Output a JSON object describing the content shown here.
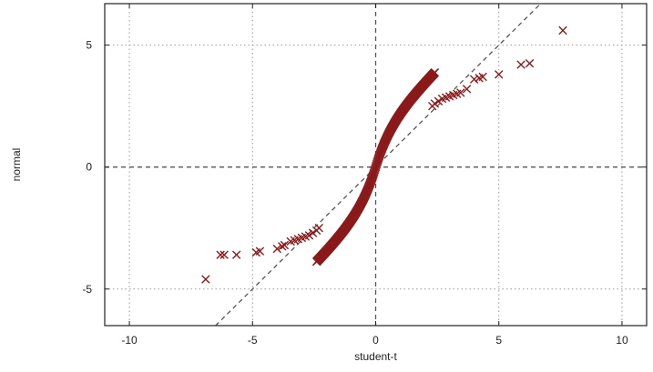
{
  "chart_data": {
    "type": "scatter",
    "xlabel": "student-t",
    "ylabel": "normal",
    "xlim": [
      -11,
      11
    ],
    "ylim": [
      -6.5,
      6.7
    ],
    "xticks": [
      -10,
      -5,
      0,
      5,
      10
    ],
    "yticks": [
      -5,
      0,
      5
    ],
    "grid": true,
    "marker": "x",
    "colors": {
      "points": "#8b1a1a",
      "grid": "#999999",
      "reference": "#555555",
      "frame": "#222222"
    },
    "reference_lines": [
      {
        "kind": "vertical",
        "x": 0
      },
      {
        "kind": "horizontal",
        "y": 0
      },
      {
        "kind": "diagonal",
        "points": [
          [
            -6.5,
            -6.5
          ],
          [
            6.7,
            6.7
          ]
        ]
      }
    ],
    "points": [
      [
        -6.9,
        -4.6
      ],
      [
        -6.3,
        -3.6
      ],
      [
        -6.15,
        -3.6
      ],
      [
        -5.65,
        -3.6
      ],
      [
        -4.85,
        -3.5
      ],
      [
        -4.7,
        -3.45
      ],
      [
        -4.0,
        -3.35
      ],
      [
        -3.8,
        -3.25
      ],
      [
        -3.7,
        -3.2
      ],
      [
        -3.45,
        -3.05
      ],
      [
        -3.3,
        -3.0
      ],
      [
        -3.15,
        -2.95
      ],
      [
        -3.0,
        -2.9
      ],
      [
        -2.85,
        -2.85
      ],
      [
        -2.7,
        -2.8
      ],
      [
        -2.55,
        -2.7
      ],
      [
        -2.4,
        -2.6
      ],
      [
        -2.3,
        -2.5
      ],
      [
        2.3,
        2.5
      ],
      [
        2.4,
        2.6
      ],
      [
        2.55,
        2.7
      ],
      [
        2.7,
        2.8
      ],
      [
        2.85,
        2.85
      ],
      [
        3.0,
        2.9
      ],
      [
        3.15,
        2.95
      ],
      [
        3.3,
        3.0
      ],
      [
        3.45,
        3.05
      ],
      [
        3.7,
        3.2
      ],
      [
        4.0,
        3.6
      ],
      [
        4.2,
        3.65
      ],
      [
        4.35,
        3.7
      ],
      [
        5.0,
        3.8
      ],
      [
        5.9,
        4.2
      ],
      [
        6.25,
        4.25
      ],
      [
        7.6,
        5.6
      ]
    ],
    "dense_band": {
      "x_range": [
        -2.4,
        2.4
      ],
      "center_slope": 2.05,
      "tail_slope": 0.6,
      "shape": "s-curve"
    }
  }
}
